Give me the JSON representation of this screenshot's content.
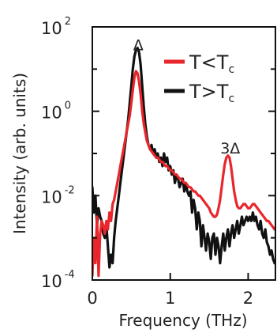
{
  "chart_data": {
    "type": "line",
    "xlabel": "Frequency (THz)",
    "ylabel": "Intensity (arb. units)",
    "xlim": [
      0,
      2.35
    ],
    "ylim_log10": [
      -4,
      2
    ],
    "y_scale": "log",
    "x_ticks": [
      {
        "value": 0,
        "label": "0"
      },
      {
        "value": 1,
        "label": "1"
      },
      {
        "value": 2,
        "label": "2"
      }
    ],
    "y_ticks": [
      {
        "value": 2,
        "base": "10",
        "exp": "2"
      },
      {
        "value": 0,
        "base": "10",
        "exp": "0"
      },
      {
        "value": -2,
        "base": "10",
        "exp": "-2"
      },
      {
        "value": -4,
        "base": "10",
        "exp": "-4"
      }
    ],
    "y_minor_ticks": [
      1,
      -1,
      -3
    ],
    "legend": {
      "placement": "top-right",
      "entries": [
        {
          "label_main": "T<T",
          "label_sub": "c",
          "color": "#e8262b"
        },
        {
          "label_main": "T>T",
          "label_sub": "c",
          "color": "#111111"
        }
      ]
    },
    "annotations": [
      {
        "text": "Δ",
        "x": 0.59,
        "y_log10": 1.45
      },
      {
        "text": "3Δ",
        "x": 1.77,
        "y_log10": -1.0
      }
    ],
    "series": [
      {
        "color": "#111111",
        "x": [
          0.0,
          0.02,
          0.04,
          0.06,
          0.08,
          0.1,
          0.12,
          0.14,
          0.16,
          0.18,
          0.2,
          0.22,
          0.24,
          0.26,
          0.28,
          0.3,
          0.32,
          0.34,
          0.36,
          0.38,
          0.4,
          0.42,
          0.44,
          0.46,
          0.48,
          0.5,
          0.52,
          0.54,
          0.56,
          0.58,
          0.6,
          0.62,
          0.64,
          0.66,
          0.68,
          0.7,
          0.72,
          0.74,
          0.76,
          0.78,
          0.8,
          0.82,
          0.84,
          0.86,
          0.88,
          0.9,
          0.92,
          0.94,
          0.96,
          0.98,
          1.0,
          1.02,
          1.04,
          1.06,
          1.08,
          1.1,
          1.12,
          1.14,
          1.16,
          1.18,
          1.2,
          1.22,
          1.24,
          1.26,
          1.28,
          1.3,
          1.32,
          1.34,
          1.36,
          1.38,
          1.4,
          1.42,
          1.44,
          1.46,
          1.48,
          1.5,
          1.52,
          1.54,
          1.56,
          1.58,
          1.6,
          1.62,
          1.64,
          1.66,
          1.68,
          1.7,
          1.72,
          1.74,
          1.76,
          1.78,
          1.8,
          1.82,
          1.84,
          1.86,
          1.88,
          1.9,
          1.92,
          1.94,
          1.96,
          1.98,
          2.0,
          2.02,
          2.04,
          2.06,
          2.08,
          2.1,
          2.12,
          2.14,
          2.16,
          2.18,
          2.2,
          2.22,
          2.24,
          2.26,
          2.28,
          2.3,
          2.32,
          2.34
        ],
        "y_log10": [
          -1.8,
          -2.4,
          -2.0,
          -2.7,
          -2.3,
          -2.5,
          -2.6,
          -2.9,
          -3.0,
          -2.7,
          -3.2,
          -3.7,
          -3.4,
          -3.6,
          -3.0,
          -2.6,
          -2.3,
          -2.0,
          -1.7,
          -1.4,
          -1.1,
          -0.8,
          -0.5,
          -0.2,
          0.2,
          0.6,
          1.0,
          1.3,
          1.45,
          1.5,
          1.4,
          1.1,
          0.6,
          0.1,
          -0.3,
          -0.6,
          -0.8,
          -0.9,
          -0.8,
          -1.0,
          -0.9,
          -1.1,
          -1.0,
          -1.2,
          -1.1,
          -1.3,
          -1.0,
          -1.2,
          -1.1,
          -1.4,
          -1.3,
          -1.5,
          -1.4,
          -1.7,
          -1.5,
          -1.6,
          -1.8,
          -1.7,
          -1.6,
          -1.9,
          -1.7,
          -1.9,
          -2.0,
          -1.9,
          -2.4,
          -2.1,
          -2.3,
          -2.8,
          -2.4,
          -2.6,
          -3.2,
          -2.7,
          -3.0,
          -3.3,
          -2.9,
          -3.1,
          -3.5,
          -3.0,
          -2.9,
          -3.4,
          -3.0,
          -3.2,
          -3.6,
          -3.2,
          -2.9,
          -3.3,
          -3.0,
          -2.8,
          -3.2,
          -2.9,
          -2.7,
          -3.0,
          -2.8,
          -2.6,
          -2.9,
          -2.7,
          -2.5,
          -2.7,
          -2.6,
          -2.5,
          -2.6,
          -2.5,
          -2.6,
          -2.4,
          -2.6,
          -2.5,
          -2.7,
          -2.8,
          -2.6,
          -2.9,
          -3.0,
          -2.8,
          -3.1,
          -3.2,
          -3.4,
          -3.3,
          -3.5,
          -3.6
        ]
      },
      {
        "color": "#e8262b",
        "x": [
          0.0,
          0.02,
          0.04,
          0.06,
          0.08,
          0.1,
          0.12,
          0.14,
          0.16,
          0.18,
          0.2,
          0.22,
          0.24,
          0.26,
          0.28,
          0.3,
          0.32,
          0.34,
          0.36,
          0.38,
          0.4,
          0.42,
          0.44,
          0.46,
          0.48,
          0.5,
          0.52,
          0.54,
          0.56,
          0.58,
          0.6,
          0.62,
          0.64,
          0.66,
          0.68,
          0.7,
          0.72,
          0.74,
          0.76,
          0.78,
          0.8,
          0.82,
          0.84,
          0.86,
          0.88,
          0.9,
          0.92,
          0.94,
          0.96,
          0.98,
          1.0,
          1.02,
          1.04,
          1.06,
          1.08,
          1.1,
          1.12,
          1.14,
          1.16,
          1.18,
          1.2,
          1.22,
          1.24,
          1.26,
          1.28,
          1.3,
          1.32,
          1.34,
          1.36,
          1.38,
          1.4,
          1.42,
          1.44,
          1.46,
          1.48,
          1.5,
          1.52,
          1.54,
          1.56,
          1.58,
          1.6,
          1.62,
          1.64,
          1.66,
          1.68,
          1.7,
          1.72,
          1.74,
          1.76,
          1.78,
          1.8,
          1.82,
          1.84,
          1.86,
          1.88,
          1.9,
          1.92,
          1.94,
          1.96,
          1.98,
          2.0,
          2.02,
          2.04,
          2.06,
          2.08,
          2.1,
          2.12,
          2.14,
          2.16,
          2.18,
          2.2,
          2.22,
          2.24,
          2.26,
          2.28,
          2.3,
          2.32,
          2.34
        ],
        "y_log10": [
          -3.9,
          -3.0,
          -3.6,
          -2.5,
          -3.9,
          -2.9,
          -2.6,
          -2.7,
          -2.9,
          -2.6,
          -2.8,
          -2.4,
          -2.6,
          -2.2,
          -2.1,
          -1.9,
          -1.7,
          -1.5,
          -1.3,
          -1.1,
          -0.9,
          -0.7,
          -0.5,
          -0.3,
          -0.1,
          0.2,
          0.5,
          0.8,
          0.95,
          0.9,
          0.7,
          0.4,
          0.0,
          -0.3,
          -0.5,
          -0.7,
          -0.8,
          -0.9,
          -0.95,
          -1.0,
          -1.05,
          -1.1,
          -1.1,
          -1.15,
          -1.2,
          -1.2,
          -1.25,
          -1.3,
          -1.3,
          -1.35,
          -1.4,
          -1.4,
          -1.45,
          -1.5,
          -1.5,
          -1.55,
          -1.6,
          -1.6,
          -1.65,
          -1.7,
          -1.7,
          -1.75,
          -1.8,
          -1.8,
          -1.85,
          -1.9,
          -1.9,
          -1.95,
          -2.0,
          -2.0,
          -2.05,
          -2.1,
          -2.15,
          -2.2,
          -2.25,
          -2.3,
          -2.4,
          -2.45,
          -2.5,
          -2.5,
          -2.45,
          -2.3,
          -2.1,
          -1.8,
          -1.5,
          -1.25,
          -1.1,
          -1.05,
          -1.1,
          -1.3,
          -1.6,
          -1.9,
          -2.1,
          -2.25,
          -2.3,
          -2.3,
          -2.25,
          -2.2,
          -2.2,
          -2.25,
          -2.3,
          -2.3,
          -2.25,
          -2.2,
          -2.2,
          -2.25,
          -2.3,
          -2.35,
          -2.4,
          -2.45,
          -2.5,
          -2.55,
          -2.6,
          -2.6,
          -2.65,
          -2.7,
          -2.75,
          -2.8
        ]
      }
    ]
  }
}
